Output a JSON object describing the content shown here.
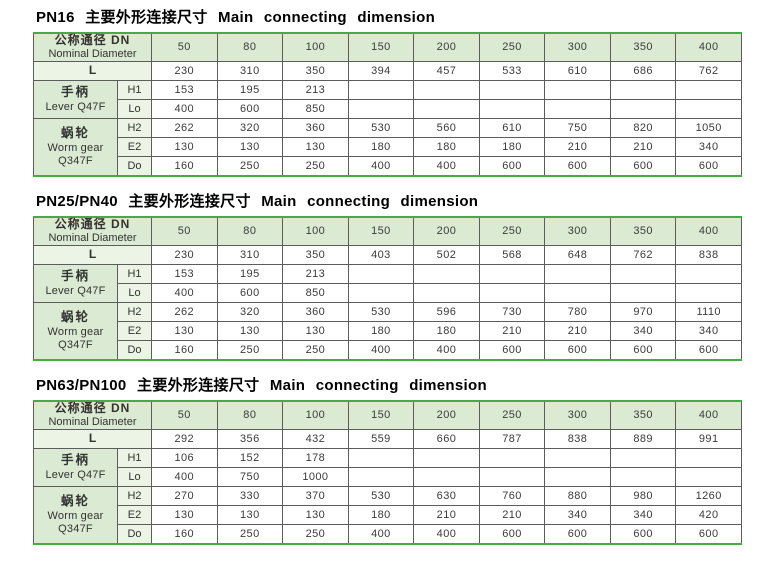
{
  "colors": {
    "table_border_green": "#42ae42",
    "header_fill": "#dbead2",
    "sublabel_fill": "#ebf4e5",
    "grid_line": "#5c5c5c",
    "page_background": "#ffffff"
  },
  "document": {
    "labels": {
      "dn_cn": "公称通径 DN",
      "dn_en": "Nominal Diameter",
      "l": "L",
      "lever_cn": "手柄",
      "lever_en": "Lever Q47F",
      "worm_cn": "蜗轮",
      "worm_en": "Worm gear",
      "worm_code": "Q347F"
    },
    "sections": [
      {
        "title": "PN16 主要外形连接尺寸 Main connecting dimension",
        "dn": [
          "50",
          "80",
          "100",
          "150",
          "200",
          "250",
          "300",
          "350",
          "400"
        ],
        "rows": [
          {
            "key": "L",
            "values": [
              "230",
              "310",
              "350",
              "394",
              "457",
              "533",
              "610",
              "686",
              "762"
            ]
          },
          {
            "key": "H1",
            "values": [
              "153",
              "195",
              "213",
              "",
              "",
              "",
              "",
              "",
              ""
            ]
          },
          {
            "key": "Lo",
            "values": [
              "400",
              "600",
              "850",
              "",
              "",
              "",
              "",
              "",
              ""
            ]
          },
          {
            "key": "H2",
            "values": [
              "262",
              "320",
              "360",
              "530",
              "560",
              "610",
              "750",
              "820",
              "1050"
            ]
          },
          {
            "key": "E2",
            "values": [
              "130",
              "130",
              "130",
              "180",
              "180",
              "180",
              "210",
              "210",
              "340"
            ]
          },
          {
            "key": "Do",
            "values": [
              "160",
              "250",
              "250",
              "400",
              "400",
              "600",
              "600",
              "600",
              "600"
            ]
          }
        ]
      },
      {
        "title": "PN25/PN40 主要外形连接尺寸 Main connecting dimension",
        "dn": [
          "50",
          "80",
          "100",
          "150",
          "200",
          "250",
          "300",
          "350",
          "400"
        ],
        "rows": [
          {
            "key": "L",
            "values": [
              "230",
              "310",
              "350",
              "403",
              "502",
              "568",
              "648",
              "762",
              "838"
            ]
          },
          {
            "key": "H1",
            "values": [
              "153",
              "195",
              "213",
              "",
              "",
              "",
              "",
              "",
              ""
            ]
          },
          {
            "key": "Lo",
            "values": [
              "400",
              "600",
              "850",
              "",
              "",
              "",
              "",
              "",
              ""
            ]
          },
          {
            "key": "H2",
            "values": [
              "262",
              "320",
              "360",
              "530",
              "596",
              "730",
              "780",
              "970",
              "1110"
            ]
          },
          {
            "key": "E2",
            "values": [
              "130",
              "130",
              "130",
              "180",
              "180",
              "210",
              "210",
              "340",
              "340"
            ]
          },
          {
            "key": "Do",
            "values": [
              "160",
              "250",
              "250",
              "400",
              "400",
              "600",
              "600",
              "600",
              "600"
            ]
          }
        ]
      },
      {
        "title": "PN63/PN100 主要外形连接尺寸 Main connecting dimension",
        "dn": [
          "50",
          "80",
          "100",
          "150",
          "200",
          "250",
          "300",
          "350",
          "400"
        ],
        "rows": [
          {
            "key": "L",
            "values": [
              "292",
              "356",
              "432",
              "559",
              "660",
              "787",
              "838",
              "889",
              "991"
            ]
          },
          {
            "key": "H1",
            "values": [
              "106",
              "152",
              "178",
              "",
              "",
              "",
              "",
              "",
              ""
            ]
          },
          {
            "key": "Lo",
            "values": [
              "400",
              "750",
              "1000",
              "",
              "",
              "",
              "",
              "",
              ""
            ]
          },
          {
            "key": "H2",
            "values": [
              "270",
              "330",
              "370",
              "530",
              "630",
              "760",
              "880",
              "980",
              "1260"
            ]
          },
          {
            "key": "E2",
            "values": [
              "130",
              "130",
              "130",
              "180",
              "210",
              "210",
              "340",
              "340",
              "420"
            ]
          },
          {
            "key": "Do",
            "values": [
              "160",
              "250",
              "250",
              "400",
              "400",
              "600",
              "600",
              "600",
              "600"
            ]
          }
        ]
      }
    ]
  }
}
